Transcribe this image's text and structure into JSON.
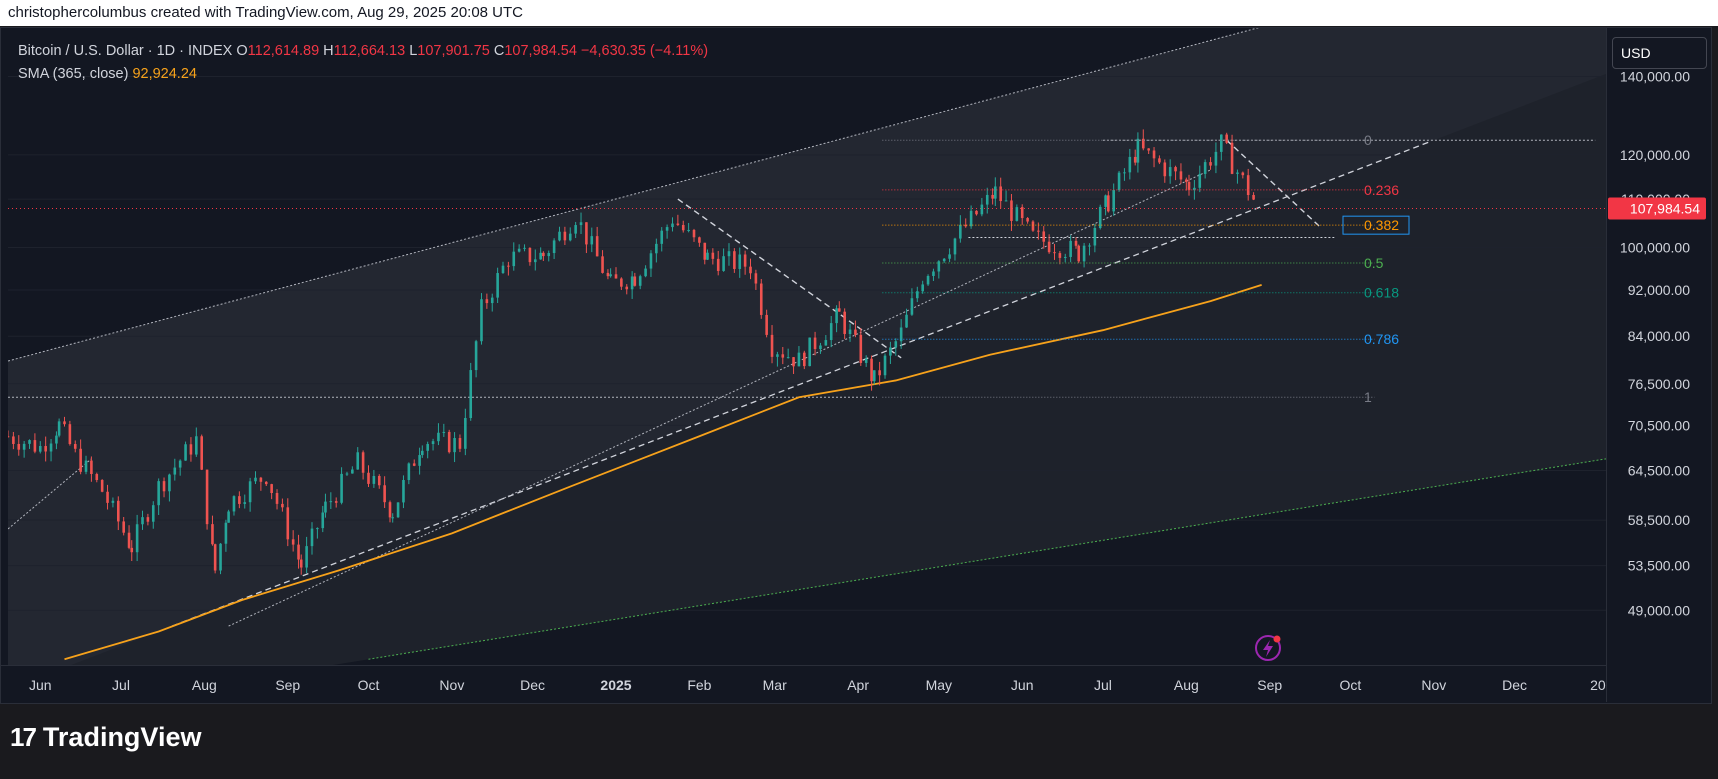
{
  "header": {
    "attribution": "christophercolumbus created with TradingView.com, Aug 29, 2025 20:08 UTC"
  },
  "legend": {
    "symbol": "Bitcoin / U.S. Dollar · 1D · INDEX",
    "o_label": "O",
    "o_value": "112,614.89",
    "h_label": "H",
    "h_value": "112,664.13",
    "l_label": "L",
    "l_value": "107,901.75",
    "c_label": "C",
    "c_value": "107,984.54",
    "change": "−4,630.35 (−4.11%)",
    "indicator_label": "SMA (365, close)",
    "indicator_value": "92,924.24"
  },
  "toolbar": {
    "currency": "USD"
  },
  "branding": {
    "logo_mark": "17",
    "name": "TradingView"
  },
  "icons": {
    "alert": "lightning-alert-icon"
  },
  "colors": {
    "background": "#131722",
    "up": "#26a69a",
    "down": "#ef5350",
    "sma": "#f7a21b",
    "price_tag": "#f23645",
    "channel": "#2a2e39",
    "fib_0": "#787b86",
    "fib_0236": "#f23645",
    "fib_0382": "#ff9800",
    "fib_05": "#4caf50",
    "fib_0618": "#089981",
    "fib_0786": "#2196f3",
    "fib_1": "#787b86"
  },
  "chart_data": {
    "type": "candlestick",
    "title": "Bitcoin / U.S. Dollar · 1D · INDEX",
    "y_scale": "log",
    "ylim": [
      44000,
      154000
    ],
    "y_ticks": [
      49000,
      53500,
      58500,
      64500,
      70500,
      76500,
      84000,
      92000,
      100000,
      110000,
      120000,
      140000
    ],
    "y_tick_labels": [
      "49,000.00",
      "53,500.00",
      "58,500.00",
      "64,500.00",
      "70,500.00",
      "76,500.00",
      "84,000.00",
      "92,000.00",
      "100,000.00",
      "110,000.00",
      "120,000.00",
      "140,000.00"
    ],
    "x_ticks": [
      "2024-06-01",
      "2024-07-01",
      "2024-08-01",
      "2024-09-01",
      "2024-10-01",
      "2024-11-01",
      "2024-12-01",
      "2025-01-01",
      "2025-02-01",
      "2025-03-01",
      "2025-04-01",
      "2025-05-01",
      "2025-06-01",
      "2025-07-01",
      "2025-08-01",
      "2025-09-01",
      "2025-10-01",
      "2025-11-01",
      "2025-12-01",
      "2026-01-01"
    ],
    "x_tick_labels": [
      "Jun",
      "Jul",
      "Aug",
      "Sep",
      "Oct",
      "Nov",
      "Dec",
      "2025",
      "Feb",
      "Mar",
      "Apr",
      "May",
      "Jun",
      "Jul",
      "Aug",
      "Sep",
      "Oct",
      "Nov",
      "Dec",
      "20"
    ],
    "xlim": [
      "2024-05-20",
      "2026-01-04"
    ],
    "last_price": {
      "value": 107984.54,
      "label": "107,984.54"
    },
    "price_path": [
      [
        "2024-05-20",
        69000
      ],
      [
        "2024-06-01",
        67500
      ],
      [
        "2024-06-08",
        70500
      ],
      [
        "2024-06-14",
        66500
      ],
      [
        "2024-06-24",
        62000
      ],
      [
        "2024-07-05",
        55500
      ],
      [
        "2024-07-15",
        62500
      ],
      [
        "2024-07-29",
        68500
      ],
      [
        "2024-08-05",
        53000
      ],
      [
        "2024-08-10",
        60500
      ],
      [
        "2024-08-24",
        64000
      ],
      [
        "2024-09-06",
        53500
      ],
      [
        "2024-09-15",
        60000
      ],
      [
        "2024-09-27",
        65500
      ],
      [
        "2024-10-10",
        59500
      ],
      [
        "2024-10-21",
        68500
      ],
      [
        "2024-11-04",
        68000
      ],
      [
        "2024-11-12",
        88500
      ],
      [
        "2024-11-22",
        98000
      ],
      [
        "2024-12-05",
        98500
      ],
      [
        "2024-12-17",
        106500
      ],
      [
        "2024-12-30",
        93000
      ],
      [
        "2025-01-08",
        94500
      ],
      [
        "2025-01-22",
        106000
      ],
      [
        "2025-02-04",
        98000
      ],
      [
        "2025-02-20",
        96500
      ],
      [
        "2025-02-28",
        82500
      ],
      [
        "2025-03-10",
        80000
      ],
      [
        "2025-03-25",
        87500
      ],
      [
        "2025-04-07",
        77000
      ],
      [
        "2025-04-17",
        84500
      ],
      [
        "2025-04-25",
        94500
      ],
      [
        "2025-05-09",
        103000
      ],
      [
        "2025-05-22",
        111500
      ],
      [
        "2025-06-05",
        102000
      ],
      [
        "2025-06-22",
        99000
      ],
      [
        "2025-07-03",
        109500
      ],
      [
        "2025-07-14",
        121500
      ],
      [
        "2025-08-02",
        113000
      ],
      [
        "2025-08-14",
        122500
      ],
      [
        "2025-08-28",
        107984.54
      ]
    ],
    "sma_365": [
      [
        "2024-06-10",
        44500
      ],
      [
        "2024-07-15",
        47000
      ],
      [
        "2024-08-15",
        50000
      ],
      [
        "2024-09-20",
        53000
      ],
      [
        "2024-11-01",
        57000
      ],
      [
        "2024-12-15",
        62500
      ],
      [
        "2025-02-01",
        69000
      ],
      [
        "2025-03-10",
        74500
      ],
      [
        "2025-04-15",
        77000
      ],
      [
        "2025-05-20",
        81000
      ],
      [
        "2025-07-01",
        85000
      ],
      [
        "2025-08-10",
        90000
      ],
      [
        "2025-08-29",
        92924.24
      ]
    ],
    "fibonacci": {
      "levels": [
        {
          "ratio": "0",
          "price": 123500
        },
        {
          "ratio": "0.236",
          "price": 112000
        },
        {
          "ratio": "0.382",
          "price": 104500
        },
        {
          "ratio": "0.5",
          "price": 97000
        },
        {
          "ratio": "0.618",
          "price": 91500
        },
        {
          "ratio": "0.786",
          "price": 83500
        },
        {
          "ratio": "1",
          "price": 74500
        }
      ],
      "start_date": "2025-04-10",
      "end_date": "2025-10-10"
    },
    "annotations": {
      "channel_upper": [
        [
          "2024-05-20",
          80000
        ],
        [
          "2025-09-01",
          155000
        ]
      ],
      "channel_mid_support": [
        [
          "2024-07-20",
          47500
        ],
        [
          "2025-10-30",
          123000
        ]
      ],
      "lower_dotted_green": [
        [
          "2024-10-01",
          44500
        ],
        [
          "2026-01-04",
          66000
        ]
      ],
      "rising_trend": [
        [
          "2024-08-10",
          47500
        ],
        [
          "2025-08-10",
          116500
        ]
      ],
      "descending_line_1": [
        [
          "2025-01-24",
          110000
        ],
        [
          "2025-04-17",
          80500
        ]
      ],
      "descending_line_2": [
        [
          "2025-08-16",
          123500
        ],
        [
          "2025-09-20",
          104000
        ]
      ],
      "support_horizontal_1": [
        [
          "2024-05-20",
          74500
        ],
        [
          "2025-04-08",
          74500
        ]
      ],
      "support_horizontal_2": [
        [
          "2025-05-12",
          102000
        ],
        [
          "2025-09-25",
          102000
        ]
      ],
      "resistance_horizontal": [
        [
          "2025-07-01",
          123500
        ],
        [
          "2025-12-31",
          123500
        ]
      ],
      "left_trend_stub": [
        [
          "2024-05-20",
          57500
        ],
        [
          "2024-06-20",
          66000
        ]
      ]
    }
  }
}
